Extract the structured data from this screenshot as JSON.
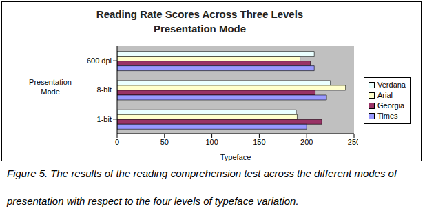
{
  "chart_data": {
    "type": "bar",
    "orientation": "horizontal",
    "title": "Reading Rate Scores Across Three Levels\nPresentation Mode",
    "x_label": "Typeface",
    "y_label": "Presentation Mode",
    "categories": [
      "600 dpi",
      "8-bit",
      "1-bit"
    ],
    "series": [
      {
        "name": "Verdana",
        "color": "#eaffff",
        "values": [
          208,
          225,
          189
        ]
      },
      {
        "name": "Arial",
        "color": "#ffffcc",
        "values": [
          193,
          241,
          190
        ]
      },
      {
        "name": "Georgia",
        "color": "#993366",
        "values": [
          204,
          209,
          216
        ]
      },
      {
        "name": "Times",
        "color": "#9999ff",
        "values": [
          208,
          221,
          200
        ]
      }
    ],
    "xlim": [
      0,
      250
    ],
    "xticks": [
      0,
      50,
      100,
      150,
      200,
      250
    ],
    "grid": false,
    "legend": "right",
    "caption": "Figure 5. The results of the reading comprehension test across the different modes of presentation with respect to the four levels of typeface variation."
  }
}
